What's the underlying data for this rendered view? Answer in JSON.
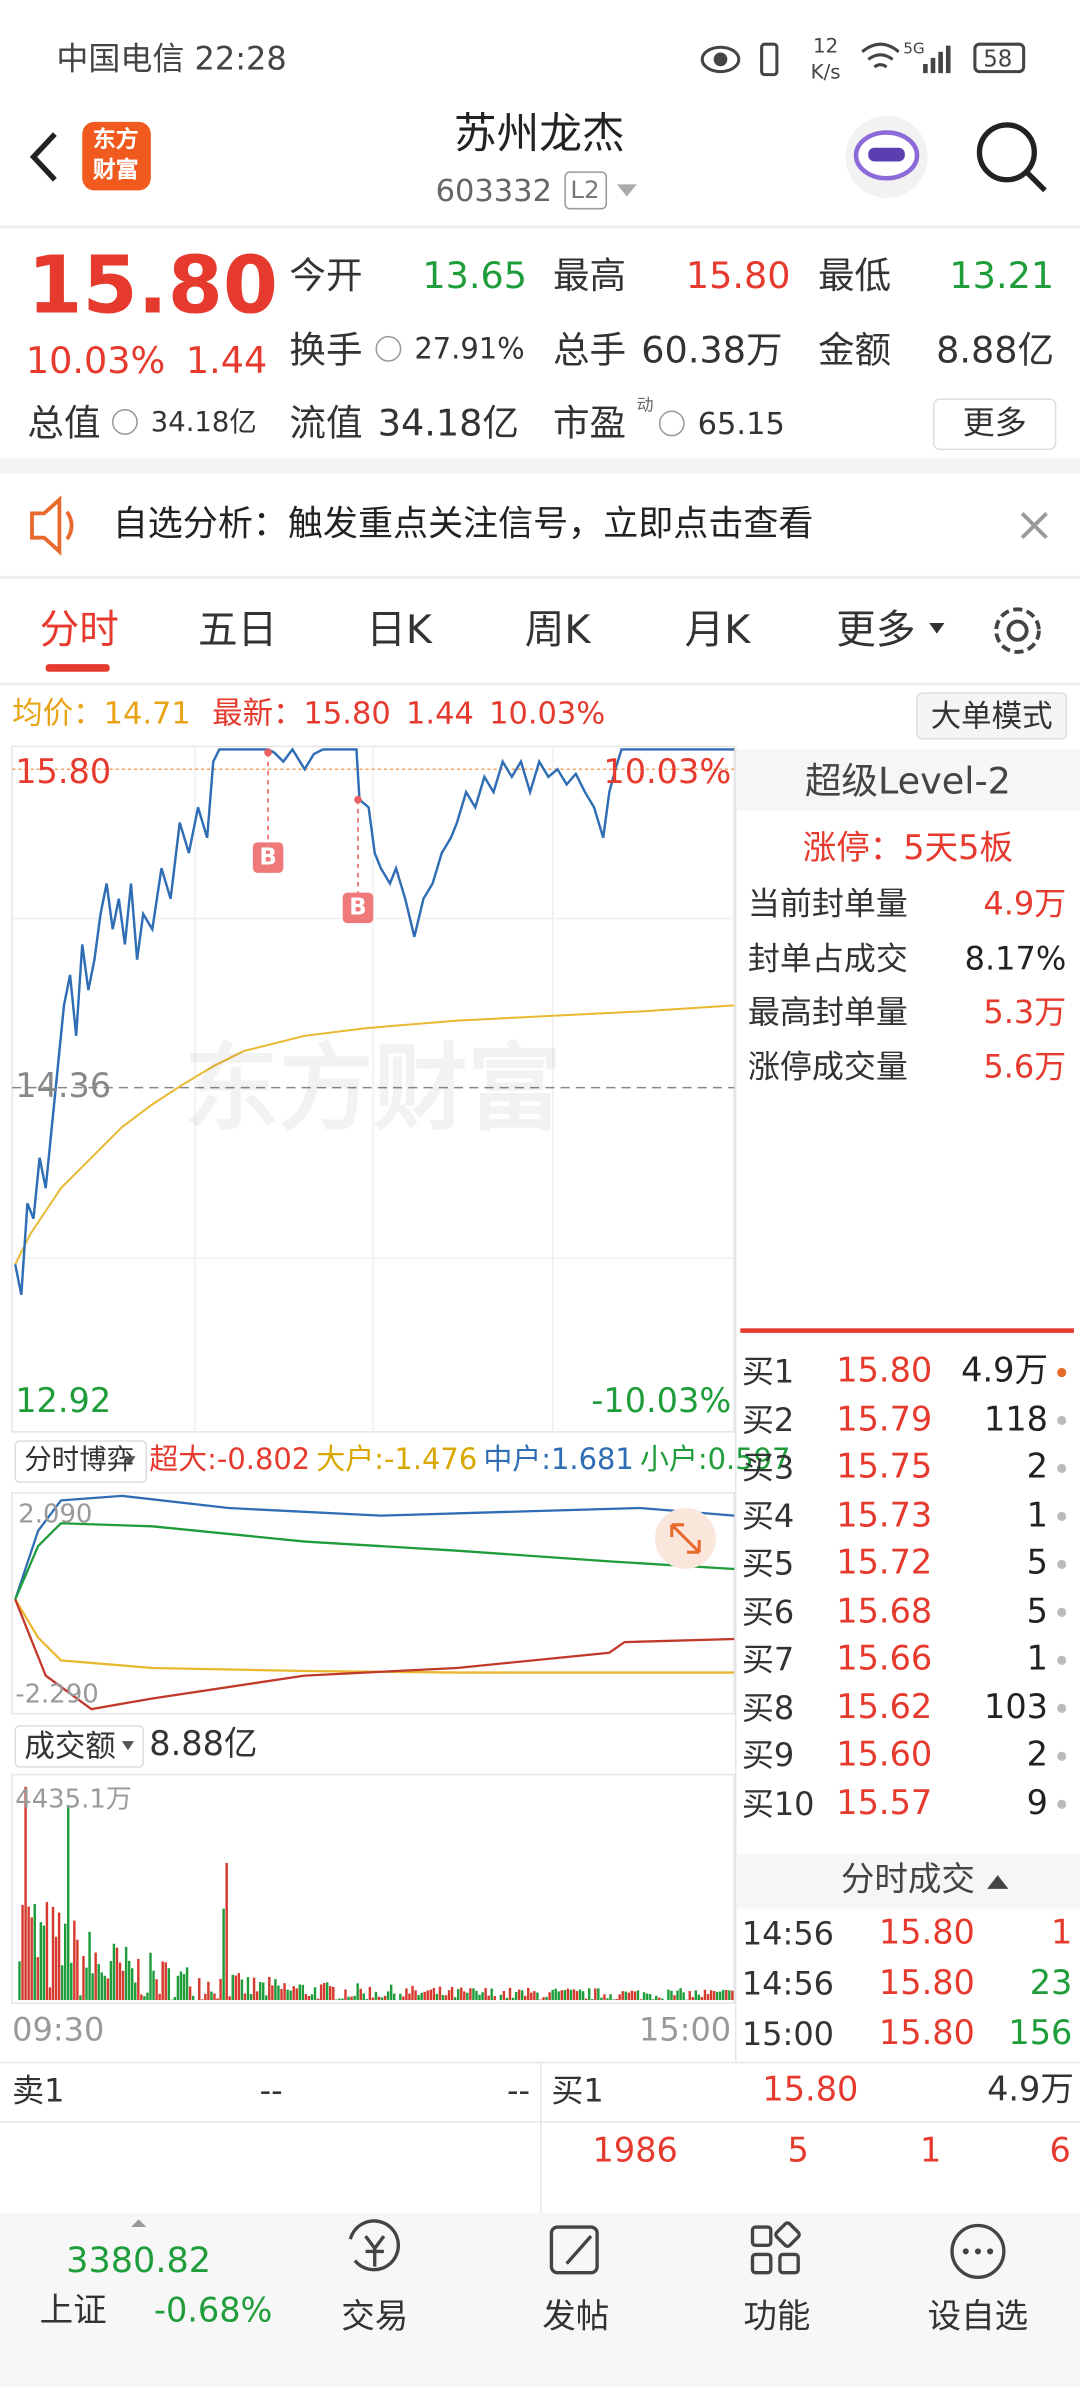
{
  "status_bar": {
    "carrier_time": "中国电信 22:28",
    "speed": "12",
    "speed_unit": "K/s",
    "network": "5G",
    "battery": "58"
  },
  "header": {
    "logo_top": "东方",
    "logo_bottom": "财富",
    "title": "苏州龙杰",
    "code": "603332",
    "level": "L2"
  },
  "quote": {
    "price": "15.80",
    "change_pct": "10.03%",
    "change": "1.44",
    "open": {
      "label": "今开",
      "value": "13.65"
    },
    "high": {
      "label": "最高",
      "value": "15.80"
    },
    "low": {
      "label": "最低",
      "value": "13.21"
    },
    "turnover_rate": {
      "label": "换手",
      "value": "27.91%"
    },
    "volume": {
      "label": "总手",
      "value": "60.38万"
    },
    "amount": {
      "label": "金额",
      "value": "8.88亿"
    },
    "market_cap": {
      "label": "总值",
      "value": "34.18亿"
    },
    "float_cap": {
      "label": "流值",
      "value": "34.18亿"
    },
    "pe": {
      "label": "市盈",
      "sup": "动",
      "value": "65.15"
    },
    "more": "更多"
  },
  "banner": {
    "text": "自选分析：触发重点关注信号，立即点击查看"
  },
  "tabs": [
    "分时",
    "五日",
    "日K",
    "周K",
    "月K",
    "更多"
  ],
  "intraday": {
    "avg_label": "均价：",
    "avg": "14.71",
    "latest_label": "最新：",
    "latest": "15.80",
    "change": "1.44",
    "change_pct": "10.03%",
    "mode_button": "大单模式",
    "high": "15.80",
    "high_pct": "10.03%",
    "pre_close": "14.36",
    "low": "12.92",
    "low_pct": "-10.03%",
    "markers": [
      "B",
      "B"
    ],
    "watermark": "东方财富"
  },
  "level2": {
    "title": "超级Level-2",
    "limit_up": "涨停：5天5板",
    "rows": [
      {
        "label": "当前封单量",
        "value": "4.9万"
      },
      {
        "label": "封单占成交",
        "value": "8.17%"
      },
      {
        "label": "最高封单量",
        "value": "5.3万"
      },
      {
        "label": "涨停成交量",
        "value": "5.6万"
      }
    ]
  },
  "fund_flow": {
    "selector": "分时博弈",
    "items": [
      {
        "label": "超大:",
        "value": "-0.802"
      },
      {
        "label": "大户:",
        "value": "-1.476"
      },
      {
        "label": "中户:",
        "value": "1.681"
      },
      {
        "label": "小户:",
        "value": "0.597"
      }
    ],
    "max": "2.090",
    "min": "-2.290"
  },
  "turnover": {
    "selector": "成交额",
    "total": "8.88亿",
    "max": "4435.1万",
    "start_time": "09:30",
    "end_time": "15:00"
  },
  "order_book": {
    "bids": [
      [
        "买1",
        "15.80",
        "4.9万"
      ],
      [
        "买2",
        "15.79",
        "118"
      ],
      [
        "买3",
        "15.75",
        "2"
      ],
      [
        "买4",
        "15.73",
        "1"
      ],
      [
        "买5",
        "15.72",
        "5"
      ],
      [
        "买6",
        "15.68",
        "5"
      ],
      [
        "买7",
        "15.66",
        "1"
      ],
      [
        "买8",
        "15.62",
        "103"
      ],
      [
        "买9",
        "15.60",
        "2"
      ],
      [
        "买10",
        "15.57",
        "9"
      ]
    ]
  },
  "trades": {
    "title": "分时成交",
    "rows": [
      [
        "14:56",
        "15.80",
        "1"
      ],
      [
        "14:56",
        "15.80",
        "23"
      ],
      [
        "15:00",
        "15.80",
        "156"
      ]
    ]
  },
  "bottom_table": {
    "ask": [
      "卖1",
      "--",
      "--"
    ],
    "bid": [
      "买1",
      "15.80",
      "4.9万"
    ],
    "row": [
      "1986",
      "5",
      "1",
      "6"
    ]
  },
  "nav": {
    "index_value": "3380.82",
    "index_name": "上证",
    "index_change": "-0.68%",
    "items": [
      "交易",
      "发帖",
      "功能",
      "设自选"
    ]
  }
}
